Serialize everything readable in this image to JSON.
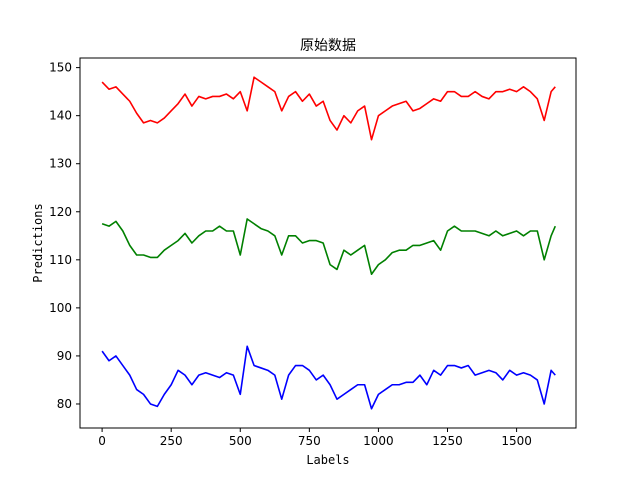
{
  "chart_data": {
    "type": "line",
    "title": "原始数据",
    "xlabel": "Labels",
    "ylabel": "Predictions",
    "xlim": [
      -80,
      1715
    ],
    "ylim": [
      75,
      152
    ],
    "xticks": [
      0,
      250,
      500,
      750,
      1000,
      1250,
      1500
    ],
    "yticks": [
      80,
      90,
      100,
      110,
      120,
      130,
      140,
      150
    ],
    "grid": false,
    "legend": "none",
    "series": [
      {
        "color": "#ff0000",
        "x": [
          0,
          25,
          50,
          75,
          100,
          125,
          150,
          175,
          200,
          225,
          250,
          275,
          300,
          325,
          350,
          375,
          400,
          425,
          450,
          475,
          500,
          525,
          550,
          575,
          600,
          625,
          650,
          675,
          700,
          725,
          750,
          775,
          800,
          825,
          850,
          875,
          900,
          925,
          950,
          975,
          1000,
          1025,
          1050,
          1075,
          1100,
          1125,
          1150,
          1175,
          1200,
          1225,
          1250,
          1275,
          1300,
          1325,
          1350,
          1375,
          1400,
          1425,
          1450,
          1475,
          1500,
          1525,
          1550,
          1575,
          1600,
          1625,
          1640
        ],
        "values": [
          147,
          145.5,
          146,
          144.5,
          143,
          140.5,
          138.5,
          139,
          138.5,
          139.5,
          141,
          142.5,
          144.5,
          142,
          144,
          143.5,
          144,
          144,
          144.5,
          143.5,
          145,
          141,
          148,
          147,
          146,
          145,
          141,
          144,
          145,
          143,
          144.5,
          142,
          143,
          139,
          137,
          140,
          138.5,
          141,
          142,
          135,
          140,
          141,
          142,
          142.5,
          143,
          141,
          141.5,
          142.5,
          143.5,
          143,
          145,
          145,
          144,
          144,
          145,
          144,
          143.5,
          145,
          145,
          145.5,
          145,
          146,
          145,
          143.5,
          139,
          145,
          146
        ]
      },
      {
        "color": "#008000",
        "x": [
          0,
          25,
          50,
          75,
          100,
          125,
          150,
          175,
          200,
          225,
          250,
          275,
          300,
          325,
          350,
          375,
          400,
          425,
          450,
          475,
          500,
          525,
          550,
          575,
          600,
          625,
          650,
          675,
          700,
          725,
          750,
          775,
          800,
          825,
          850,
          875,
          900,
          925,
          950,
          975,
          1000,
          1025,
          1050,
          1075,
          1100,
          1125,
          1150,
          1175,
          1200,
          1225,
          1250,
          1275,
          1300,
          1325,
          1350,
          1375,
          1400,
          1425,
          1450,
          1475,
          1500,
          1525,
          1550,
          1575,
          1600,
          1625,
          1640
        ],
        "values": [
          117.5,
          117,
          118,
          116,
          113,
          111,
          111,
          110.5,
          110.5,
          112,
          113,
          114,
          115.5,
          113.5,
          115,
          116,
          116,
          117,
          116,
          116,
          111,
          118.5,
          117.5,
          116.5,
          116,
          115,
          111,
          115,
          115,
          113.5,
          114,
          114,
          113.5,
          109,
          108,
          112,
          111,
          112,
          113,
          107,
          109,
          110,
          111.5,
          112,
          112,
          113,
          113,
          113.5,
          114,
          112,
          116,
          117,
          116,
          116,
          116,
          115.5,
          115,
          116,
          115,
          115.5,
          116,
          115,
          116,
          116,
          110,
          115,
          117
        ]
      },
      {
        "color": "#0000ff",
        "x": [
          0,
          25,
          50,
          75,
          100,
          125,
          150,
          175,
          200,
          225,
          250,
          275,
          300,
          325,
          350,
          375,
          400,
          425,
          450,
          475,
          500,
          525,
          550,
          575,
          600,
          625,
          650,
          675,
          700,
          725,
          750,
          775,
          800,
          825,
          850,
          875,
          900,
          925,
          950,
          975,
          1000,
          1025,
          1050,
          1075,
          1100,
          1125,
          1150,
          1175,
          1200,
          1225,
          1250,
          1275,
          1300,
          1325,
          1350,
          1375,
          1400,
          1425,
          1450,
          1475,
          1500,
          1525,
          1550,
          1575,
          1600,
          1625,
          1640
        ],
        "values": [
          91,
          89,
          90,
          88,
          86,
          83,
          82,
          80,
          79.5,
          82,
          84,
          87,
          86,
          84,
          86,
          86.5,
          86,
          85.5,
          86.5,
          86,
          82,
          92,
          88,
          87.5,
          87,
          86,
          81,
          86,
          88,
          88,
          87,
          85,
          86,
          84,
          81,
          82,
          83,
          84,
          84,
          79,
          82,
          83,
          84,
          84,
          84.5,
          84.5,
          86,
          84,
          87,
          86,
          88,
          88,
          87.5,
          88,
          86,
          86.5,
          87,
          86.5,
          85,
          87,
          86,
          86.5,
          86,
          85,
          80,
          87,
          86
        ]
      }
    ]
  }
}
